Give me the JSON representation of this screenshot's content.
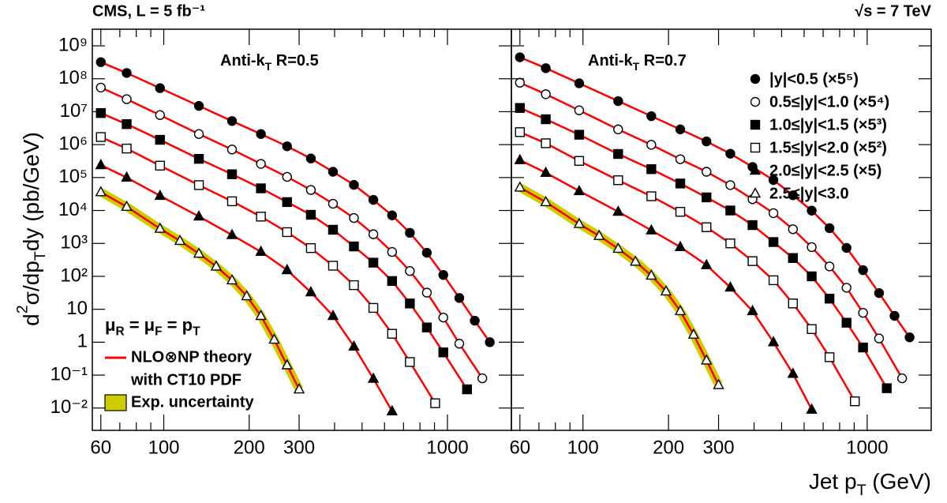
{
  "figure": {
    "label_left": "CMS, L = 5 fb⁻¹",
    "label_right": "√s = 7 TeV",
    "ylabel": [
      "d",
      {
        "sup": "2"
      },
      "σ/dp",
      {
        "sub": "T"
      },
      "dy (pb/GeV)"
    ],
    "xlabel": [
      "Jet p",
      {
        "sub": "T"
      },
      " (GeV)"
    ]
  },
  "chart_data": [
    {
      "type": "scatter",
      "log_x": true,
      "log_y": true,
      "title": [
        "Anti-k",
        {
          "sub": "T"
        },
        " R=0.5"
      ],
      "xlim": [
        56,
        1680
      ],
      "ylim": [
        0.0021,
        3200000000.0
      ],
      "xticks": [
        60,
        100,
        200,
        300,
        1000
      ],
      "xticks_minor": [
        70,
        80,
        90,
        400,
        500,
        600,
        700,
        800,
        900
      ],
      "yticks": [
        {
          "value": 0.01,
          "label": "10⁻²"
        },
        {
          "value": 0.1,
          "label": "10⁻¹"
        },
        1,
        10,
        {
          "value": 100,
          "label": "10²"
        },
        {
          "value": 1000,
          "label": "10³"
        },
        {
          "value": 10000,
          "label": "10⁴"
        },
        {
          "value": 100000,
          "label": "10⁵"
        },
        {
          "value": 1000000,
          "label": "10⁶"
        },
        {
          "value": 10000000,
          "label": "10⁷"
        },
        {
          "value": 100000000,
          "label": "10⁸"
        },
        {
          "value": 1000000000,
          "label": "10⁹"
        }
      ],
      "theory_color": "#ff0000",
      "band_color": "#cccc00",
      "legend": [
        {
          "kind": "text",
          "text": [
            "μ",
            {
              "sub": "R"
            },
            " = μ",
            {
              "sub": "F"
            },
            " = p",
            {
              "sub": "T"
            }
          ]
        },
        {
          "kind": "line",
          "lines": [
            "NLO⊗NP theory",
            "with CT10 PDF"
          ]
        },
        {
          "kind": "box",
          "lines": [
            "Exp. uncertainty"
          ]
        }
      ],
      "series": [
        {
          "marker": "circle-filled",
          "color": "#000000",
          "x": [
            60,
            74,
            97,
            133,
            174,
            220,
            272,
            330,
            395,
            468,
            548,
            638,
            737,
            846,
            967,
            1101,
            1248,
            1410
          ],
          "values": [
            320000000.0,
            150000000.0,
            52000000.0,
            15000000.0,
            5200000.0,
            2100000.0,
            890000.0,
            380000.0,
            150000.0,
            60000.0,
            21000.0,
            7100,
            2100,
            520,
            110,
            22,
            4.5,
            1.0
          ]
        },
        {
          "marker": "circle-open",
          "color": "#000000",
          "x": [
            60,
            74,
            97,
            133,
            174,
            220,
            272,
            330,
            395,
            468,
            548,
            638,
            737,
            846,
            967,
            1101,
            1327
          ],
          "values": [
            54000000.0,
            24000000.0,
            7900000.0,
            2100000.0,
            710000.0,
            260000.0,
            105000.0,
            42000.0,
            16000.0,
            5900,
            1900,
            550,
            145,
            32,
            5.6,
            0.9,
            0.08
          ]
        },
        {
          "marker": "square-filled",
          "color": "#000000",
          "x": [
            60,
            74,
            97,
            133,
            174,
            220,
            272,
            330,
            395,
            468,
            548,
            638,
            737,
            846,
            967,
            1172
          ],
          "values": [
            9100000.0,
            4200000.0,
            1400000.0,
            370000.0,
            126000.0,
            47000.0,
            18000.0,
            7400,
            2600,
            810,
            260,
            72,
            15,
            2.8,
            0.49,
            0.037
          ]
        },
        {
          "marker": "square-open",
          "color": "#000000",
          "x": [
            60,
            74,
            97,
            133,
            174,
            220,
            272,
            330,
            395,
            468,
            548,
            638,
            737,
            905
          ],
          "values": [
            1700000.0,
            760000.0,
            230000.0,
            59000.0,
            19000.0,
            6500,
            2200,
            720,
            210,
            54,
            11,
            1.8,
            0.25,
            0.014
          ]
        },
        {
          "marker": "triangle-filled",
          "color": "#000000",
          "x": [
            60,
            74,
            97,
            133,
            174,
            220,
            272,
            330,
            395,
            468,
            548,
            638
          ],
          "values": [
            240000.0,
            100000.0,
            28000.0,
            6600,
            1800,
            560,
            155,
            33,
            6.3,
            0.74,
            0.078,
            0.008
          ]
        },
        {
          "marker": "triangle-open",
          "color": "#000000",
          "band": true,
          "x": [
            60,
            74,
            97,
            114,
            133,
            153,
            174,
            196,
            220,
            245,
            272,
            300
          ],
          "values": [
            36000.0,
            13000.0,
            2800,
            1200,
            490,
            200,
            76,
            25,
            6.3,
            1.2,
            0.2,
            0.037
          ]
        }
      ]
    },
    {
      "type": "scatter",
      "log_x": true,
      "log_y": true,
      "title": [
        "Anti-k",
        {
          "sub": "T"
        },
        " R=0.7"
      ],
      "xlim": [
        56,
        1680
      ],
      "ylim": [
        0.0021,
        3200000000.0
      ],
      "xticks": [
        60,
        100,
        200,
        300,
        1000
      ],
      "xticks_minor": [
        70,
        80,
        90,
        400,
        500,
        600,
        700,
        800,
        900
      ],
      "yticks": [
        0.01,
        0.1,
        1,
        10,
        100,
        1000,
        10000,
        100000,
        1000000,
        10000000,
        100000000,
        1000000000
      ],
      "theory_color": "#ff0000",
      "band_color": "#cccc00",
      "series": [
        {
          "name": "|y|<0.5 (×5⁵)",
          "marker": "circle-filled",
          "color": "#000000",
          "x": [
            60,
            74,
            97,
            133,
            174,
            220,
            272,
            330,
            395,
            468,
            548,
            638,
            737,
            846,
            967,
            1101,
            1248,
            1410
          ],
          "values": [
            450000000.0,
            210000000.0,
            73000000.0,
            21000000.0,
            7300000.0,
            2900000.0,
            1250000.0,
            530000.0,
            210000.0,
            84000.0,
            29000.0,
            9900,
            2900,
            730,
            154,
            31,
            6.3,
            1.4
          ]
        },
        {
          "name": "0.5≤|y|<1.0 (×5⁴)",
          "marker": "circle-open",
          "color": "#000000",
          "x": [
            60,
            74,
            97,
            133,
            174,
            220,
            272,
            330,
            395,
            468,
            548,
            638,
            737,
            846,
            967,
            1101,
            1327
          ],
          "values": [
            76000000.0,
            34000000.0,
            11000000.0,
            2900000.0,
            990000.0,
            360000.0,
            150000.0,
            59000.0,
            22000.0,
            8300,
            2700,
            770,
            200,
            45,
            7.8,
            1.3,
            0.08
          ]
        },
        {
          "name": "1.0≤|y|<1.5 (×5³)",
          "marker": "square-filled",
          "color": "#000000",
          "x": [
            60,
            74,
            97,
            133,
            174,
            220,
            272,
            330,
            395,
            468,
            548,
            638,
            737,
            846,
            967,
            1172
          ],
          "values": [
            13000000.0,
            5900000.0,
            2000000.0,
            520000.0,
            180000.0,
            66000.0,
            25000.0,
            10000.0,
            3600,
            1100,
            360,
            100,
            21,
            3.9,
            0.69,
            0.04
          ]
        },
        {
          "name": "1.5≤|y|<2.0 (×5²)",
          "marker": "square-open",
          "color": "#000000",
          "x": [
            60,
            74,
            97,
            133,
            174,
            220,
            272,
            330,
            395,
            468,
            548,
            638,
            737,
            905
          ],
          "values": [
            2400000.0,
            1100000.0,
            320000.0,
            83000.0,
            27000.0,
            9100,
            3100,
            1000,
            290,
            76,
            15,
            2.5,
            0.35,
            0.016
          ]
        },
        {
          "name": "2.0≤|y|<2.5 (×5)",
          "marker": "triangle-filled",
          "color": "#000000",
          "x": [
            60,
            74,
            97,
            133,
            174,
            220,
            272,
            330,
            395,
            468,
            548,
            638
          ],
          "values": [
            340000.0,
            140000.0,
            39000.0,
            9200,
            2500,
            780,
            220,
            46,
            8.8,
            1.0,
            0.11,
            0.009
          ]
        },
        {
          "name": "2.5≤|y|<3.0",
          "marker": "triangle-open",
          "color": "#000000",
          "band": true,
          "x": [
            60,
            74,
            97,
            114,
            133,
            153,
            174,
            196,
            220,
            245,
            272,
            300
          ],
          "values": [
            50000.0,
            18000.0,
            3900,
            1700,
            690,
            280,
            106,
            35,
            8.8,
            1.7,
            0.28,
            0.05
          ]
        }
      ]
    }
  ]
}
